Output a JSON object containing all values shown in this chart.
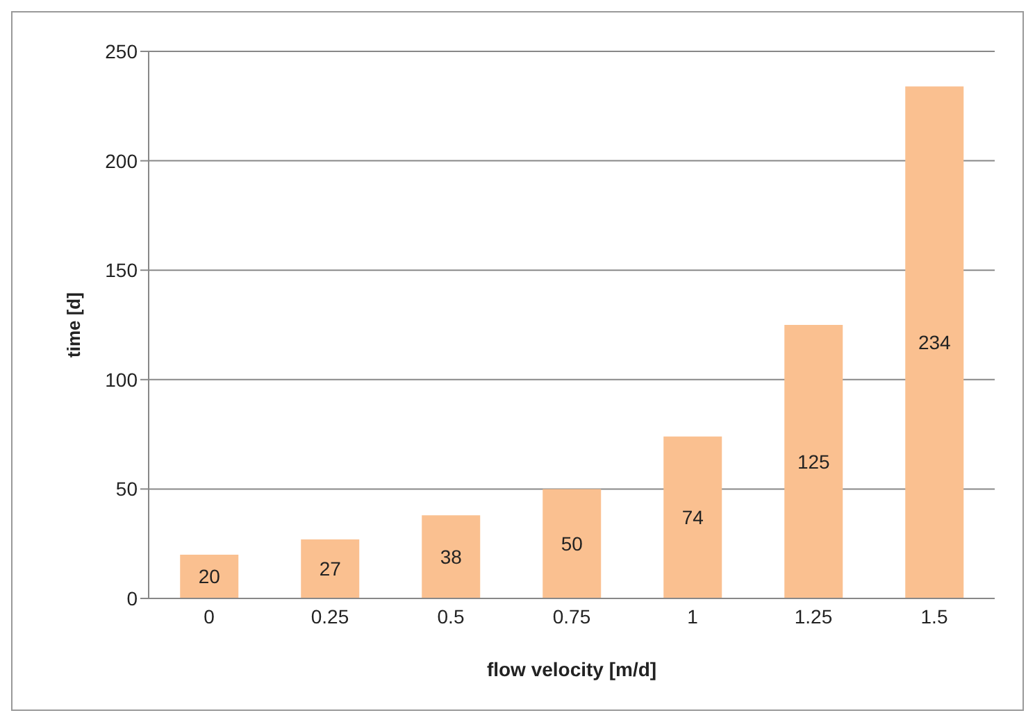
{
  "chart_data": {
    "type": "bar",
    "xlabel": "flow velocity [m/d]",
    "ylabel": "time [d]",
    "categories": [
      "0",
      "0.25",
      "0.5",
      "0.75",
      "1",
      "1.25",
      "1.5"
    ],
    "values": [
      20,
      27,
      38,
      50,
      74,
      125,
      234
    ],
    "color": "#fac090",
    "ylim": [
      0,
      250
    ],
    "yticks": [
      0,
      50,
      100,
      150,
      200,
      250
    ],
    "grid": "y",
    "data_labels": true
  }
}
